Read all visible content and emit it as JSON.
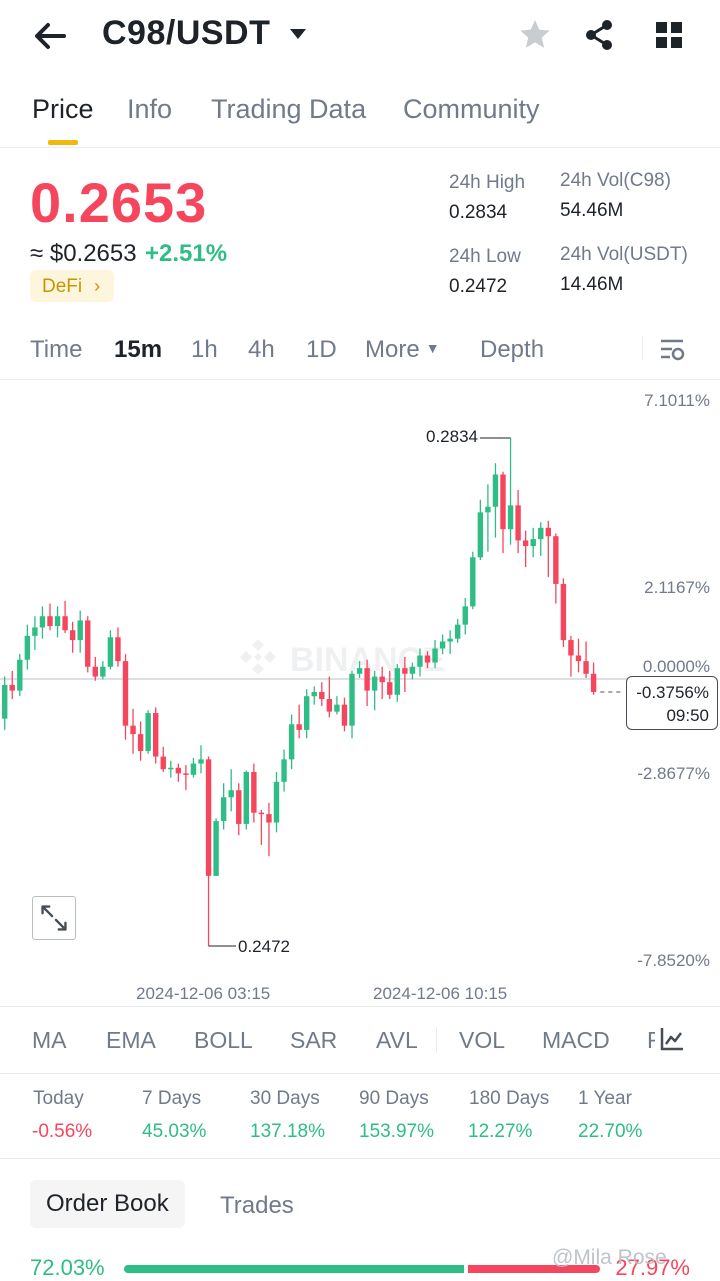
{
  "header": {
    "title": "C98/USDT",
    "icons": {
      "back": "arrow-left-icon",
      "caret": "caret-down-icon",
      "star": "star-icon",
      "share": "share-icon",
      "grid": "grid-icon"
    }
  },
  "tabs": [
    "Price",
    "Info",
    "Trading Data",
    "Community"
  ],
  "price": {
    "last": "0.2653",
    "fiat": "≈ $0.2653",
    "change": "+2.51%",
    "tag": "DeFi",
    "tag_chevron": "›"
  },
  "stats": {
    "high_label": "24h High",
    "high_value": "0.2834",
    "low_label": "24h Low",
    "low_value": "0.2472",
    "vol_base_label": "24h Vol(C98)",
    "vol_base_value": "54.46M",
    "vol_quote_label": "24h Vol(USDT)",
    "vol_quote_value": "14.46M"
  },
  "intervals": [
    "Time",
    "15m",
    "1h",
    "4h",
    "1D",
    "More",
    "Depth"
  ],
  "chart_data": {
    "type": "candlestick",
    "axis_right": [
      "7.1011%",
      "2.1167%",
      "0.0000%",
      "-2.8677%",
      "-7.8520%"
    ],
    "x_ticks": [
      "2024-12-06 03:15",
      "2024-12-06 10:15"
    ],
    "high_marker": "0.2834",
    "low_marker": "0.2472",
    "last_pct": "-0.3756%",
    "countdown": "09:50",
    "watermark": "BINANCE",
    "ylim": [
      0.2472,
      0.2834
    ],
    "candles": [
      [
        0.2634,
        0.2664,
        0.2626,
        0.2658
      ],
      [
        0.2658,
        0.2668,
        0.2648,
        0.2654
      ],
      [
        0.2654,
        0.268,
        0.265,
        0.2676
      ],
      [
        0.2676,
        0.2701,
        0.2669,
        0.2693
      ],
      [
        0.2693,
        0.2707,
        0.2683,
        0.2699
      ],
      [
        0.2699,
        0.2714,
        0.2691,
        0.2707
      ],
      [
        0.2707,
        0.2716,
        0.2697,
        0.27
      ],
      [
        0.27,
        0.2714,
        0.2692,
        0.2707
      ],
      [
        0.2707,
        0.2718,
        0.2695,
        0.2697
      ],
      [
        0.2697,
        0.2703,
        0.2681,
        0.269
      ],
      [
        0.269,
        0.2711,
        0.2681,
        0.2704
      ],
      [
        0.2704,
        0.2707,
        0.2667,
        0.2671
      ],
      [
        0.2671,
        0.2678,
        0.2661,
        0.2664
      ],
      [
        0.2664,
        0.2675,
        0.2662,
        0.2671
      ],
      [
        0.2671,
        0.2697,
        0.2669,
        0.2692
      ],
      [
        0.2692,
        0.2699,
        0.2671,
        0.2675
      ],
      [
        0.2675,
        0.268,
        0.2619,
        0.2629
      ],
      [
        0.2629,
        0.2641,
        0.2609,
        0.2623
      ],
      [
        0.2623,
        0.2632,
        0.2604,
        0.2611
      ],
      [
        0.2611,
        0.264,
        0.2609,
        0.2638
      ],
      [
        0.2638,
        0.2642,
        0.2602,
        0.2607
      ],
      [
        0.2607,
        0.2614,
        0.2596,
        0.2598
      ],
      [
        0.2598,
        0.2604,
        0.2592,
        0.2599
      ],
      [
        0.2599,
        0.2602,
        0.2589,
        0.2595
      ],
      [
        0.2595,
        0.2601,
        0.2583,
        0.2594
      ],
      [
        0.2594,
        0.2606,
        0.2592,
        0.2602
      ],
      [
        0.2602,
        0.2615,
        0.2595,
        0.2605
      ],
      [
        0.2605,
        0.2607,
        0.2472,
        0.2522
      ],
      [
        0.2522,
        0.2563,
        0.2522,
        0.2561
      ],
      [
        0.2561,
        0.2588,
        0.2555,
        0.2578
      ],
      [
        0.2578,
        0.2598,
        0.2568,
        0.2583
      ],
      [
        0.2583,
        0.2588,
        0.2551,
        0.2559
      ],
      [
        0.2559,
        0.2597,
        0.2555,
        0.2596
      ],
      [
        0.2596,
        0.2602,
        0.256,
        0.2567
      ],
      [
        0.2567,
        0.2569,
        0.2544,
        0.2566
      ],
      [
        0.2566,
        0.2574,
        0.2536,
        0.256
      ],
      [
        0.256,
        0.2596,
        0.2553,
        0.2589
      ],
      [
        0.2589,
        0.2612,
        0.2582,
        0.2605
      ],
      [
        0.2605,
        0.2637,
        0.2598,
        0.263
      ],
      [
        0.263,
        0.2644,
        0.262,
        0.2626
      ],
      [
        0.2626,
        0.2655,
        0.262,
        0.265
      ],
      [
        0.265,
        0.2657,
        0.2644,
        0.2653
      ],
      [
        0.2653,
        0.266,
        0.2643,
        0.2648
      ],
      [
        0.2648,
        0.2664,
        0.2635,
        0.2639
      ],
      [
        0.2639,
        0.265,
        0.2637,
        0.2644
      ],
      [
        0.2644,
        0.2649,
        0.2625,
        0.2629
      ],
      [
        0.2629,
        0.2668,
        0.262,
        0.2666
      ],
      [
        0.2666,
        0.2675,
        0.2663,
        0.267
      ],
      [
        0.267,
        0.2676,
        0.2643,
        0.2654
      ],
      [
        0.2654,
        0.2668,
        0.264,
        0.2664
      ],
      [
        0.2664,
        0.2671,
        0.2648,
        0.266
      ],
      [
        0.266,
        0.2668,
        0.2648,
        0.2651
      ],
      [
        0.2651,
        0.2673,
        0.2646,
        0.267
      ],
      [
        0.267,
        0.2678,
        0.2653,
        0.2666
      ],
      [
        0.2666,
        0.2674,
        0.2662,
        0.2671
      ],
      [
        0.2671,
        0.2684,
        0.2664,
        0.2679
      ],
      [
        0.2679,
        0.2682,
        0.267,
        0.2674
      ],
      [
        0.2674,
        0.269,
        0.267,
        0.2684
      ],
      [
        0.2684,
        0.2694,
        0.268,
        0.2689
      ],
      [
        0.2689,
        0.2697,
        0.268,
        0.2691
      ],
      [
        0.2691,
        0.2705,
        0.2688,
        0.2701
      ],
      [
        0.2701,
        0.272,
        0.2694,
        0.2714
      ],
      [
        0.2714,
        0.2753,
        0.2712,
        0.2749
      ],
      [
        0.2749,
        0.279,
        0.2747,
        0.2781
      ],
      [
        0.2781,
        0.2801,
        0.2753,
        0.2785
      ],
      [
        0.2785,
        0.2816,
        0.2763,
        0.2808
      ],
      [
        0.2808,
        0.281,
        0.2752,
        0.2769
      ],
      [
        0.2769,
        0.2834,
        0.2758,
        0.2786
      ],
      [
        0.2786,
        0.2797,
        0.2752,
        0.2761
      ],
      [
        0.2761,
        0.2768,
        0.2742,
        0.2757
      ],
      [
        0.2757,
        0.277,
        0.2749,
        0.2762
      ],
      [
        0.2762,
        0.2774,
        0.275,
        0.277
      ],
      [
        0.277,
        0.2775,
        0.2735,
        0.2764
      ],
      [
        0.2764,
        0.2766,
        0.2716,
        0.273
      ],
      [
        0.273,
        0.2734,
        0.2685,
        0.269
      ],
      [
        0.269,
        0.2693,
        0.2664,
        0.2679
      ],
      [
        0.2679,
        0.2691,
        0.2667,
        0.2675
      ],
      [
        0.2675,
        0.2689,
        0.2663,
        0.2666
      ],
      [
        0.2666,
        0.2674,
        0.2651,
        0.2653
      ]
    ]
  },
  "indicators": [
    "MA",
    "EMA",
    "BOLL",
    "SAR",
    "AVL",
    "VOL",
    "MACD",
    "F"
  ],
  "performance": [
    {
      "label": "Today",
      "value": "-0.56%",
      "dir": "neg"
    },
    {
      "label": "7 Days",
      "value": "45.03%",
      "dir": "pos"
    },
    {
      "label": "30 Days",
      "value": "137.18%",
      "dir": "pos"
    },
    {
      "label": "90 Days",
      "value": "153.97%",
      "dir": "pos"
    },
    {
      "label": "180 Days",
      "value": "12.27%",
      "dir": "pos"
    },
    {
      "label": "1 Year",
      "value": "22.70%",
      "dir": "pos"
    }
  ],
  "bottom_tabs": [
    "Order Book",
    "Trades"
  ],
  "ratio": {
    "buy": "72.03%",
    "sell": "27.97%",
    "buy_fraction": 0.7203
  },
  "watermark_user": "@Mila Rose",
  "colors": {
    "up": "#2ebd85",
    "down": "#f6465d",
    "accent": "#f0b90b"
  }
}
